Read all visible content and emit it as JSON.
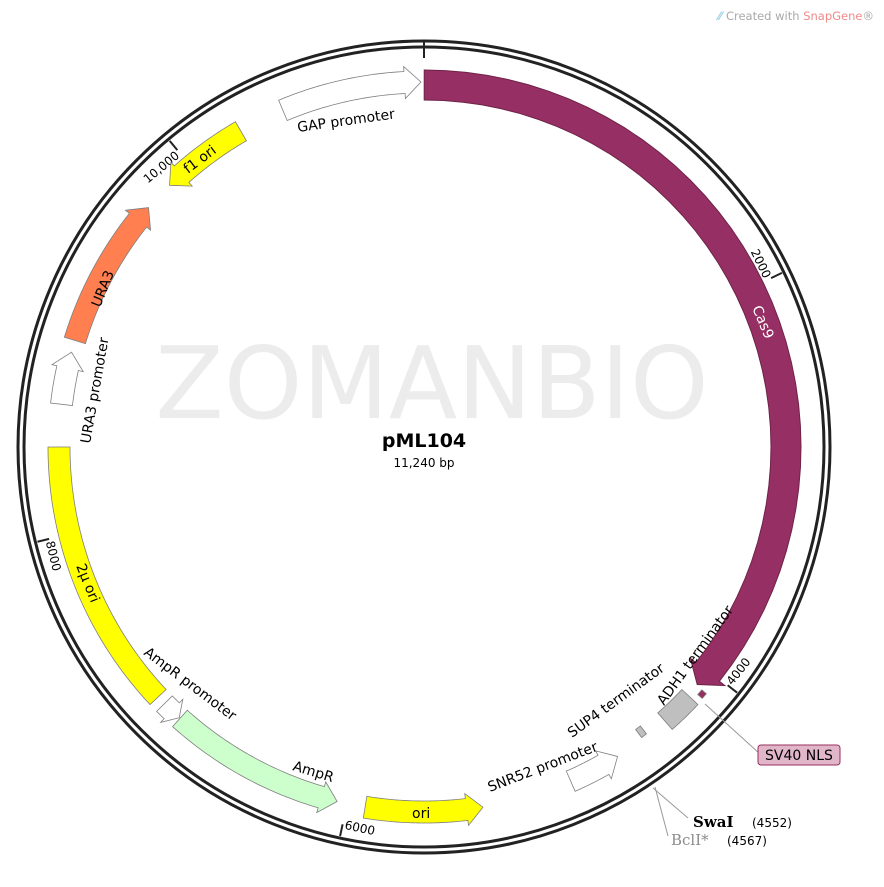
{
  "credit": {
    "prefix": "Created with ",
    "brand": "SnapGene",
    "suffix": "®"
  },
  "watermark": "ZOMANBIO",
  "plasmid": {
    "name": "pML104",
    "length_label": "11,240 bp",
    "length_bp": 11240
  },
  "ticks": [
    {
      "bp": 2000,
      "label": "2000"
    },
    {
      "bp": 4000,
      "label": "4000"
    },
    {
      "bp": 6000,
      "label": "6000"
    },
    {
      "bp": 8000,
      "label": "8000"
    },
    {
      "bp": 10000,
      "label": "10,000"
    }
  ],
  "features": [
    {
      "label": "Cas9",
      "start": 1,
      "end": 4090,
      "direction": "cw",
      "color": "#962f63"
    },
    {
      "label": "SV40 NLS",
      "start": 4095,
      "end": 4125,
      "direction": "none",
      "color": "#962f63"
    },
    {
      "label": "ADH1 terminator",
      "start": 4160,
      "end": 4330,
      "direction": "none",
      "color": "#bfbfbf"
    },
    {
      "label": "SUP4 terminator",
      "start": 4440,
      "end": 4470,
      "direction": "none",
      "color": "#bfbfbf"
    },
    {
      "label": "SNR52 promoter",
      "start": 4620,
      "end": 4880,
      "direction": "ccw",
      "color": "#ffffff"
    },
    {
      "label": "ori",
      "start": 5330,
      "end": 5910,
      "direction": "ccw",
      "color": "#ffff00"
    },
    {
      "label": "AmpR",
      "start": 6050,
      "end": 6930,
      "direction": "ccw",
      "color": "#ccffcc"
    },
    {
      "label": "AmpR promoter",
      "start": 6935,
      "end": 7035,
      "direction": "ccw",
      "color": "#ffffff"
    },
    {
      "label": "2µ ori",
      "start": 7080,
      "end": 8430,
      "direction": "none",
      "color": "#ffff00"
    },
    {
      "label": "URA3 promoter",
      "start": 8640,
      "end": 8900,
      "direction": "cw",
      "color": "#ffffff"
    },
    {
      "label": "URA3",
      "start": 8960,
      "end": 9710,
      "direction": "cw",
      "color": "#ff7f50"
    },
    {
      "label": "f1 ori",
      "start": 9860,
      "end": 10300,
      "direction": "ccw",
      "color": "#ffff00"
    },
    {
      "label": "GAP promoter",
      "start": 10530,
      "end": 11225,
      "direction": "cw",
      "color": "#ffffff"
    }
  ],
  "sites": [
    {
      "name": "SwaI",
      "position": "(4552)",
      "bp": 4552,
      "color": "#000000"
    },
    {
      "name": "BclI*",
      "position": "(4567)",
      "bp": 4567,
      "color": "#8c8c8c"
    }
  ],
  "callout": {
    "label": "SV40 NLS",
    "fill": "#e0b6c8",
    "border": "#9b2d62"
  }
}
